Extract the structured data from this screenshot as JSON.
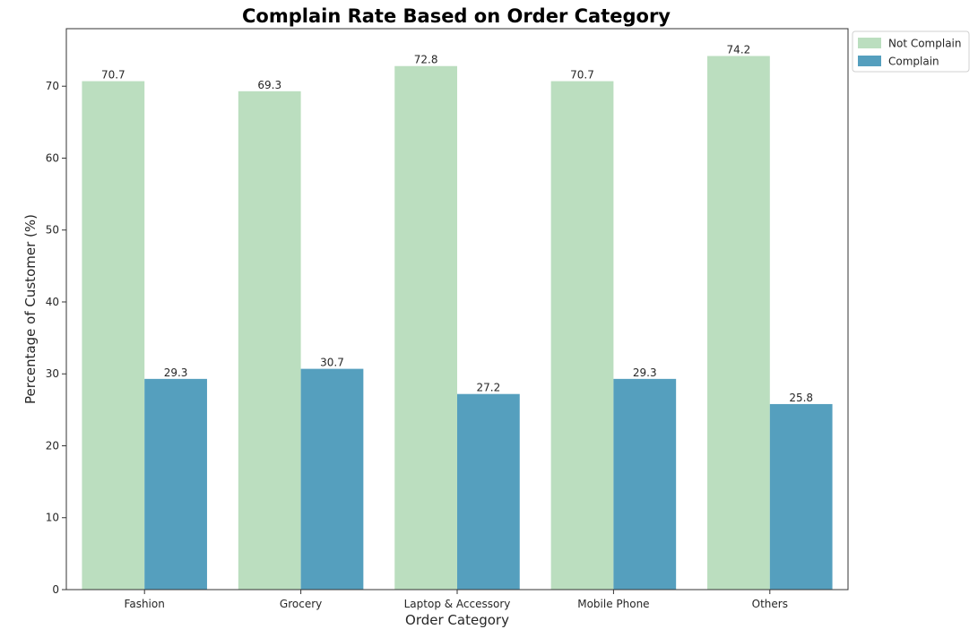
{
  "chart_data": {
    "type": "bar",
    "title": "Complain Rate Based on Order Category",
    "xlabel": "Order Category",
    "ylabel": "Percentage of Customer (%)",
    "categories": [
      "Fashion",
      "Grocery",
      "Laptop & Accessory",
      "Mobile Phone",
      "Others"
    ],
    "series": [
      {
        "name": "Not Complain",
        "color": "#bbdebf",
        "values": [
          70.7,
          69.3,
          72.8,
          70.7,
          74.2
        ],
        "labels": [
          "70.7",
          "69.3",
          "72.8",
          "70.7",
          "74.2"
        ]
      },
      {
        "name": "Complain",
        "color": "#559fbe",
        "values": [
          29.3,
          30.7,
          27.2,
          29.3,
          25.8
        ],
        "labels": [
          "29.3",
          "30.7",
          "27.2",
          "29.3",
          "25.8"
        ]
      }
    ],
    "ylim": [
      0,
      78
    ],
    "yticks": [
      0,
      10,
      20,
      30,
      40,
      50,
      60,
      70
    ],
    "grid": false,
    "legend": "outside-top-right"
  }
}
